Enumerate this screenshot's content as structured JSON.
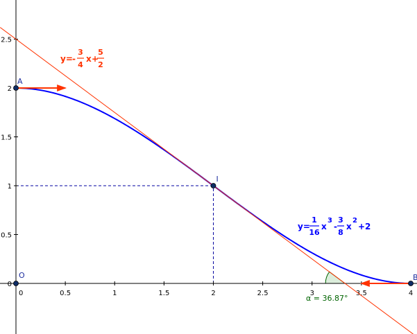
{
  "chart_data": {
    "type": "line",
    "xlim": [
      -0.16,
      4.07
    ],
    "ylim": [
      -0.52,
      2.87
    ],
    "grid": false,
    "x_ticks": [
      {
        "value": 0,
        "label": "0"
      },
      {
        "value": 0.5,
        "label": "0.5"
      },
      {
        "value": 1,
        "label": "1"
      },
      {
        "value": 1.5,
        "label": "1.5"
      },
      {
        "value": 2,
        "label": "2"
      },
      {
        "value": 2.5,
        "label": "2.5"
      },
      {
        "value": 3,
        "label": "3"
      },
      {
        "value": 3.5,
        "label": "3.5"
      },
      {
        "value": 4,
        "label": "4"
      }
    ],
    "y_ticks": [
      {
        "value": 0.5,
        "label": "0.5"
      },
      {
        "value": 1,
        "label": "1"
      },
      {
        "value": 1.5,
        "label": "1.5"
      },
      {
        "value": 2,
        "label": "2"
      },
      {
        "value": 2.5,
        "label": "2.5"
      }
    ],
    "series": [
      {
        "name": "",
        "color": "#0000ff",
        "kind": "cubic",
        "coefficients": [
          0.0625,
          -0.375,
          0,
          2
        ],
        "domain": [
          0,
          4
        ]
      },
      {
        "name": "",
        "color": "#ff3300",
        "kind": "tangent-line",
        "slope": -0.75,
        "intercept": 2.5,
        "domain": [
          -0.16,
          4.07
        ]
      }
    ],
    "points": [
      {
        "id": "O",
        "label": "O",
        "x": 0,
        "y": 0
      },
      {
        "id": "A",
        "label": "A",
        "x": 0,
        "y": 2
      },
      {
        "id": "I",
        "label": "I",
        "x": 2,
        "y": 1
      },
      {
        "id": "B",
        "label": "B",
        "x": 4,
        "y": 0
      }
    ],
    "arrows": [
      {
        "name": "tangent-arrow-at-a",
        "from": [
          0,
          2
        ],
        "to": [
          0.5,
          2
        ],
        "color": "#ff3300"
      },
      {
        "name": "tangent-arrow-at-b",
        "from": [
          4,
          0
        ],
        "to": [
          3.5,
          0
        ],
        "color": "#ff3300"
      }
    ],
    "dashed_guides": [
      {
        "name": "guide-horizontal-at-i",
        "from": [
          0,
          1
        ],
        "to": [
          2,
          1
        ]
      },
      {
        "name": "guide-vertical-at-i",
        "from": [
          2,
          0
        ],
        "to": [
          2,
          1
        ]
      }
    ],
    "angle_marker": {
      "vertex": [
        3.3333,
        0
      ],
      "degrees": 36.87,
      "label": "α = 36.87°",
      "color": "#006400"
    },
    "equations": {
      "tangent": {
        "lhs": "y=",
        "minus": "-",
        "num1": "3",
        "den1": "4",
        "x": "x",
        "plus": "+",
        "num2": "5",
        "den2": "2",
        "color": "#ff3300"
      },
      "curve": {
        "lhs": "y=",
        "num1": "1",
        "den1": "16",
        "x1": "x",
        "exp1": "3",
        "minus": "-",
        "num2": "3",
        "den2": "8",
        "x2": "x",
        "exp2": "2",
        "tail": "+2",
        "color": "#0000ff"
      }
    },
    "colors": {
      "axis": "#000000",
      "curve": "#0000ff",
      "tangent": "#ff3300",
      "point_fill": "#0f2c66",
      "point_label": "#1f2f9f",
      "guide": "#0000a0",
      "angle": "#006400"
    }
  }
}
